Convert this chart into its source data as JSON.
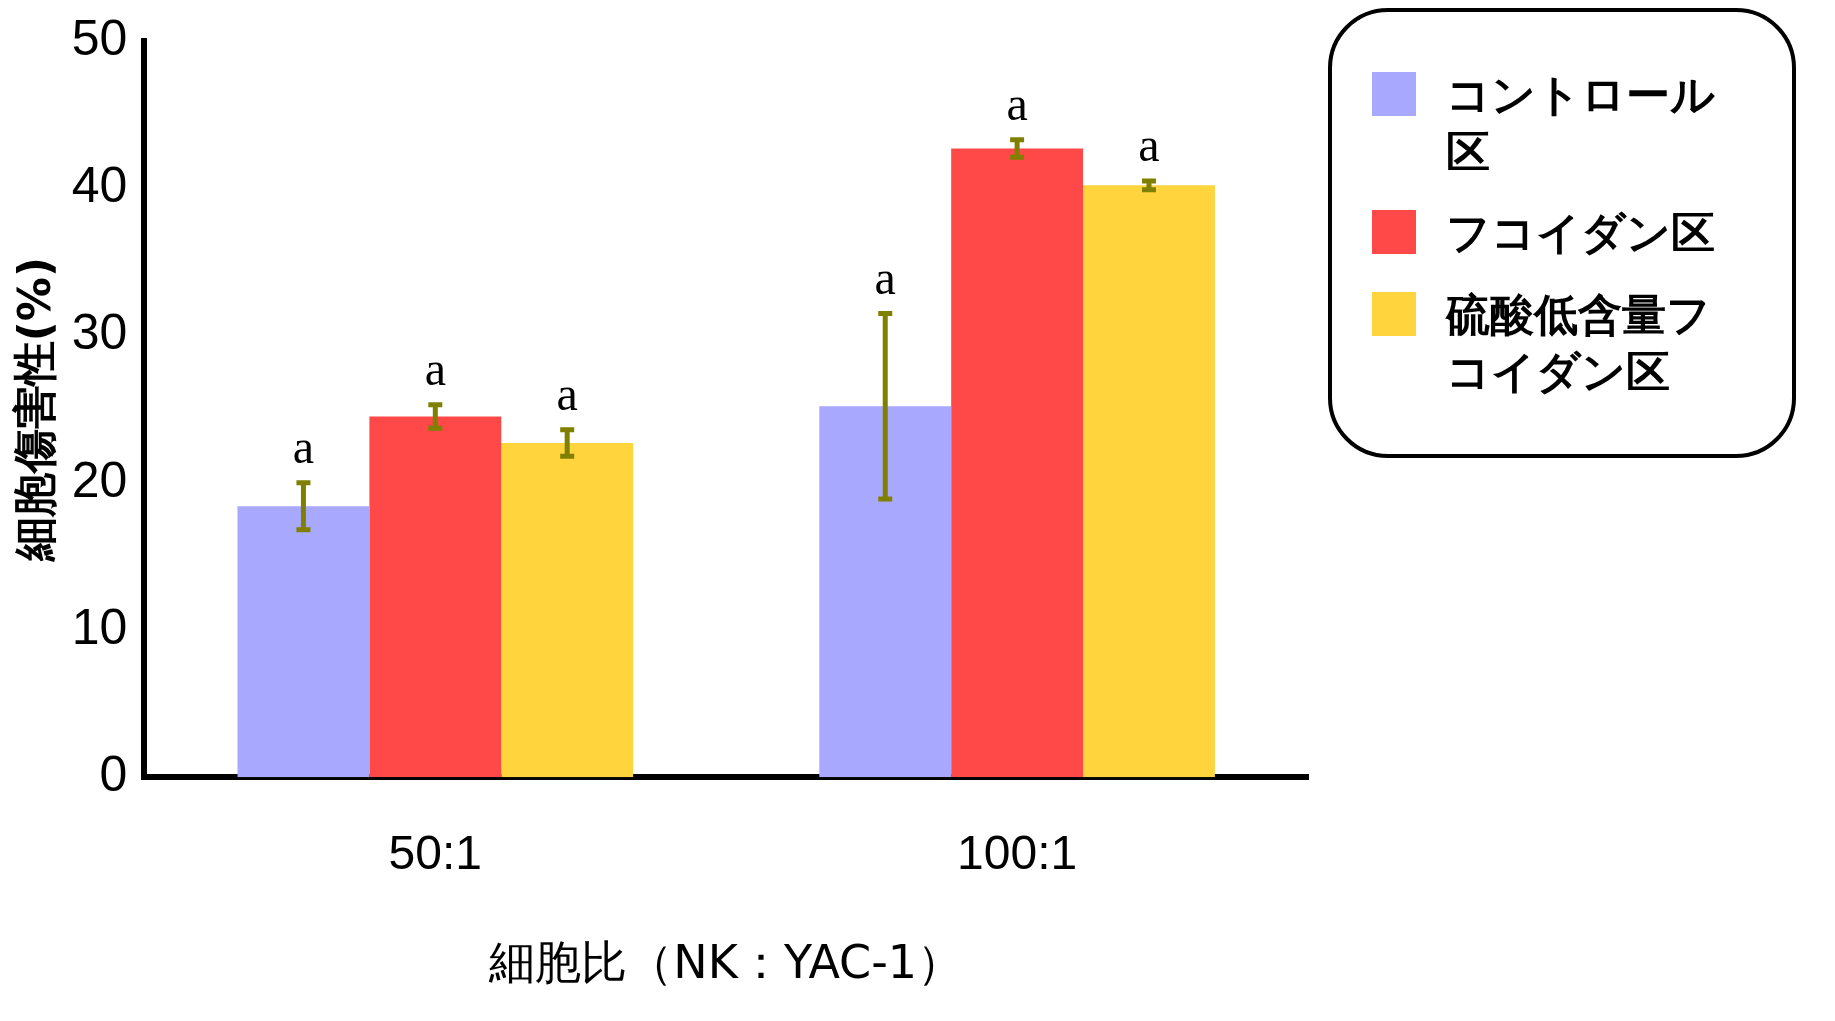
{
  "chart_data": {
    "type": "bar",
    "xlabel": "細胞比（NK：YAC-1）",
    "ylabel": "細胞傷害性(%)",
    "categories": [
      "50:1",
      "100:1"
    ],
    "series": [
      {
        "name": "コントロール区",
        "color": "#a8a8ff",
        "values": [
          18.4,
          25.2
        ],
        "errors": [
          1.6,
          6.3
        ],
        "value_labels": [
          "a",
          "a"
        ]
      },
      {
        "name": "フコイダン区",
        "color": "#ff4848",
        "values": [
          24.5,
          42.7
        ],
        "errors": [
          0.8,
          0.6
        ],
        "value_labels": [
          "a",
          "a"
        ]
      },
      {
        "name": "硫酸低含量フコイダン区",
        "color": "#ffd43c",
        "values": [
          22.7,
          40.2
        ],
        "errors": [
          0.9,
          0.3
        ],
        "value_labels": [
          "a",
          "a"
        ]
      }
    ],
    "ylim": [
      0,
      50
    ],
    "yticks": [
      0,
      10,
      20,
      30,
      40,
      50
    ],
    "grid": false,
    "legend": "top right"
  }
}
